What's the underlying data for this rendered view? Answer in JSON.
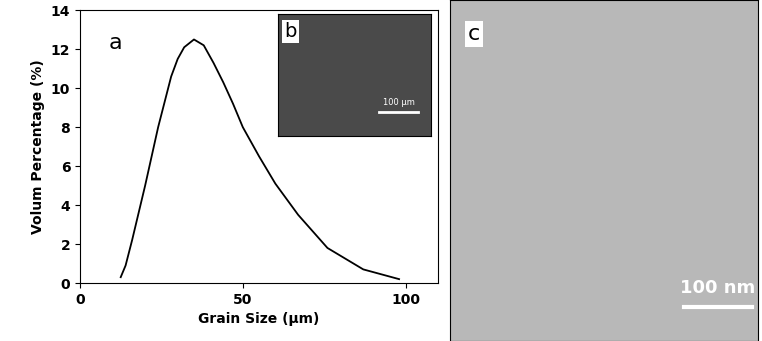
{
  "chart_data": {
    "type": "line",
    "x_label": "Grain Size (μm)",
    "y_label": "Volum Percentage (%)",
    "annotations": [
      "a"
    ],
    "x": [
      12.5,
      14,
      16,
      18,
      20,
      22,
      24,
      26,
      28,
      30,
      32,
      35,
      38,
      41,
      44,
      47,
      50,
      55,
      60,
      67,
      76,
      87,
      98
    ],
    "values": [
      0.3,
      0.9,
      2.2,
      3.6,
      5.0,
      6.5,
      8.0,
      9.3,
      10.6,
      11.5,
      12.1,
      12.5,
      12.2,
      11.3,
      10.3,
      9.2,
      8.0,
      6.5,
      5.1,
      3.5,
      1.8,
      0.7,
      0.2
    ],
    "color": "#000000",
    "xlim": [
      0,
      110
    ],
    "xticks": [
      0,
      50,
      100
    ],
    "ylim": [
      0,
      14
    ],
    "yticks": [
      0,
      2,
      4,
      6,
      8,
      10,
      12,
      14
    ],
    "grid": false
  },
  "inset": {
    "label": "b",
    "scale_bar": "100 μm"
  },
  "micrograph": {
    "label": "c",
    "scale_bar": "100 nm"
  }
}
